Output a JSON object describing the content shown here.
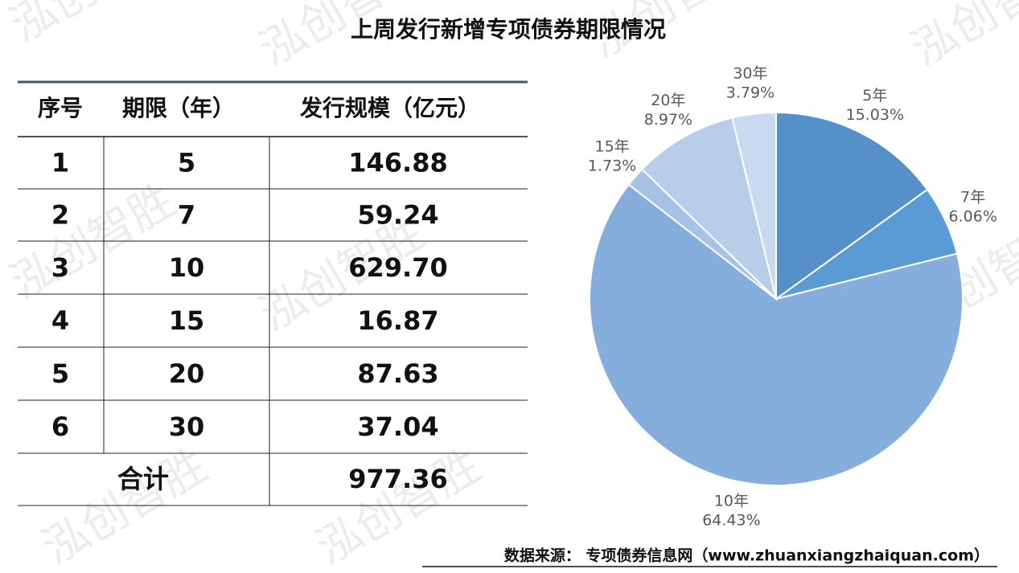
{
  "title": "上周发行新增专项债券期限情况",
  "watermark": "泓创智胜",
  "table": {
    "headers": [
      "序号",
      "期限（年）",
      "发行规模（亿元）"
    ],
    "rows": [
      [
        "1",
        "5",
        "146.88"
      ],
      [
        "2",
        "7",
        "59.24"
      ],
      [
        "3",
        "10",
        "629.70"
      ],
      [
        "4",
        "15",
        "16.87"
      ],
      [
        "5",
        "20",
        "87.63"
      ],
      [
        "6",
        "30",
        "37.04"
      ]
    ],
    "total": [
      "合计",
      "977.36"
    ]
  },
  "chart_data": {
    "type": "pie",
    "categories": [
      "5年",
      "7年",
      "10年",
      "15年",
      "20年",
      "30年"
    ],
    "values": [
      15.03,
      6.06,
      64.43,
      1.73,
      8.97,
      3.79
    ],
    "value_labels": [
      "15.03%",
      "6.06%",
      "64.43%",
      "1.73%",
      "8.97%",
      "3.79%"
    ],
    "colors": [
      "#5591c8",
      "#5b9bd5",
      "#86aedc",
      "#a8c2e6",
      "#b8cde9",
      "#c9d9ef"
    ]
  },
  "source": "数据来源： 专项债券信息网（www.zhuanxiangzhaiquan.com）"
}
